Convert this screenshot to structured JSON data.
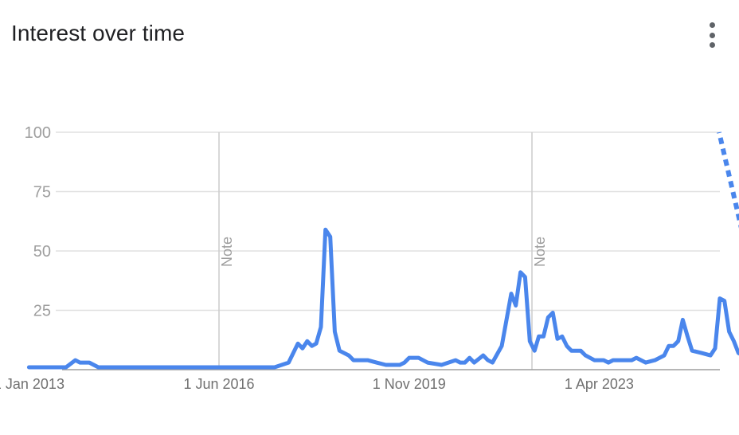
{
  "header": {
    "title": "Interest over time",
    "menu_icon": "more-vert-icon"
  },
  "colors": {
    "line": "#4a86ec",
    "grid": "#e0e0e0",
    "axis": "#9e9e9e",
    "annotation": "#cccccc"
  },
  "chart_data": {
    "type": "line",
    "title": "Interest over time",
    "xlabel": "",
    "ylabel": "",
    "ylim": [
      0,
      100
    ],
    "y_ticks": [
      "0",
      "25",
      "50",
      "75",
      "100"
    ],
    "x_range": [
      "2013-01-01",
      "2025-12-01"
    ],
    "x_ticks": [
      {
        "date": "2013-01-01",
        "label": "1 Jan 2013"
      },
      {
        "date": "2016-06-01",
        "label": "1 Jun 2016"
      },
      {
        "date": "2019-11-01",
        "label": "1 Nov 2019"
      },
      {
        "date": "2023-04-01",
        "label": "1 Apr 2023"
      }
    ],
    "annotations": [
      {
        "date": "2016-06-01",
        "label": "Note"
      },
      {
        "date": "2022-01-15",
        "label": "Note"
      }
    ],
    "grid": true,
    "series": [
      {
        "points": [
          [
            "2013-01-01",
            1
          ],
          [
            "2013-06-01",
            1
          ],
          [
            "2013-09-01",
            1
          ],
          [
            "2013-11-01",
            4
          ],
          [
            "2013-12-01",
            3
          ],
          [
            "2014-02-01",
            3
          ],
          [
            "2014-04-01",
            1
          ],
          [
            "2014-09-01",
            1
          ],
          [
            "2015-01-01",
            1
          ],
          [
            "2015-06-01",
            1
          ],
          [
            "2015-12-01",
            1
          ],
          [
            "2016-03-01",
            1
          ],
          [
            "2016-06-01",
            1
          ],
          [
            "2016-12-01",
            1
          ],
          [
            "2017-02-01",
            1
          ],
          [
            "2017-06-01",
            1
          ],
          [
            "2017-09-01",
            3
          ],
          [
            "2017-11-01",
            11
          ],
          [
            "2017-12-01",
            9
          ],
          [
            "2018-01-01",
            12
          ],
          [
            "2018-02-01",
            10
          ],
          [
            "2018-03-01",
            11
          ],
          [
            "2018-04-01",
            18
          ],
          [
            "2018-05-01",
            59
          ],
          [
            "2018-06-01",
            56
          ],
          [
            "2018-07-01",
            16
          ],
          [
            "2018-08-01",
            8
          ],
          [
            "2018-10-01",
            6
          ],
          [
            "2018-11-01",
            4
          ],
          [
            "2019-02-01",
            4
          ],
          [
            "2019-04-01",
            3
          ],
          [
            "2019-06-01",
            2
          ],
          [
            "2019-09-01",
            2
          ],
          [
            "2019-10-01",
            3
          ],
          [
            "2019-11-01",
            5
          ],
          [
            "2020-01-01",
            5
          ],
          [
            "2020-03-01",
            3
          ],
          [
            "2020-06-01",
            2
          ],
          [
            "2020-09-01",
            4
          ],
          [
            "2020-10-01",
            3
          ],
          [
            "2020-11-01",
            3
          ],
          [
            "2020-12-01",
            5
          ],
          [
            "2021-01-01",
            3
          ],
          [
            "2021-03-01",
            6
          ],
          [
            "2021-04-01",
            4
          ],
          [
            "2021-05-01",
            3
          ],
          [
            "2021-07-01",
            10
          ],
          [
            "2021-09-01",
            32
          ],
          [
            "2021-10-01",
            27
          ],
          [
            "2021-11-01",
            41
          ],
          [
            "2021-12-01",
            39
          ],
          [
            "2022-01-01",
            12
          ],
          [
            "2022-02-01",
            8
          ],
          [
            "2022-03-01",
            14
          ],
          [
            "2022-04-01",
            14
          ],
          [
            "2022-05-01",
            22
          ],
          [
            "2022-06-01",
            24
          ],
          [
            "2022-07-01",
            13
          ],
          [
            "2022-08-01",
            14
          ],
          [
            "2022-09-01",
            10
          ],
          [
            "2022-10-01",
            8
          ],
          [
            "2022-12-01",
            8
          ],
          [
            "2023-01-01",
            6
          ],
          [
            "2023-03-01",
            4
          ],
          [
            "2023-05-01",
            4
          ],
          [
            "2023-06-01",
            3
          ],
          [
            "2023-07-01",
            4
          ],
          [
            "2023-09-01",
            4
          ],
          [
            "2023-11-01",
            4
          ],
          [
            "2023-12-01",
            5
          ],
          [
            "2024-01-01",
            4
          ],
          [
            "2024-02-01",
            3
          ],
          [
            "2024-04-01",
            4
          ],
          [
            "2024-06-01",
            6
          ],
          [
            "2024-07-01",
            10
          ],
          [
            "2024-08-01",
            10
          ],
          [
            "2024-09-01",
            12
          ],
          [
            "2024-10-01",
            21
          ],
          [
            "2024-11-01",
            14
          ],
          [
            "2024-12-01",
            8
          ],
          [
            "2025-02-01",
            7
          ],
          [
            "2025-04-01",
            6
          ],
          [
            "2025-05-01",
            9
          ],
          [
            "2025-06-01",
            30
          ],
          [
            "2025-07-01",
            29
          ],
          [
            "2025-08-01",
            16
          ],
          [
            "2025-09-01",
            12
          ],
          [
            "2025-10-01",
            7
          ],
          [
            "2025-11-01",
            6
          ],
          [
            "2025-12-01",
            8
          ],
          [
            "2026-01-01",
            9
          ],
          [
            "2026-02-01",
            31
          ]
        ],
        "partial_segment": [
          [
            "2026-02-01",
            31
          ],
          [
            "2026-03-01",
            100
          ]
        ]
      }
    ]
  }
}
